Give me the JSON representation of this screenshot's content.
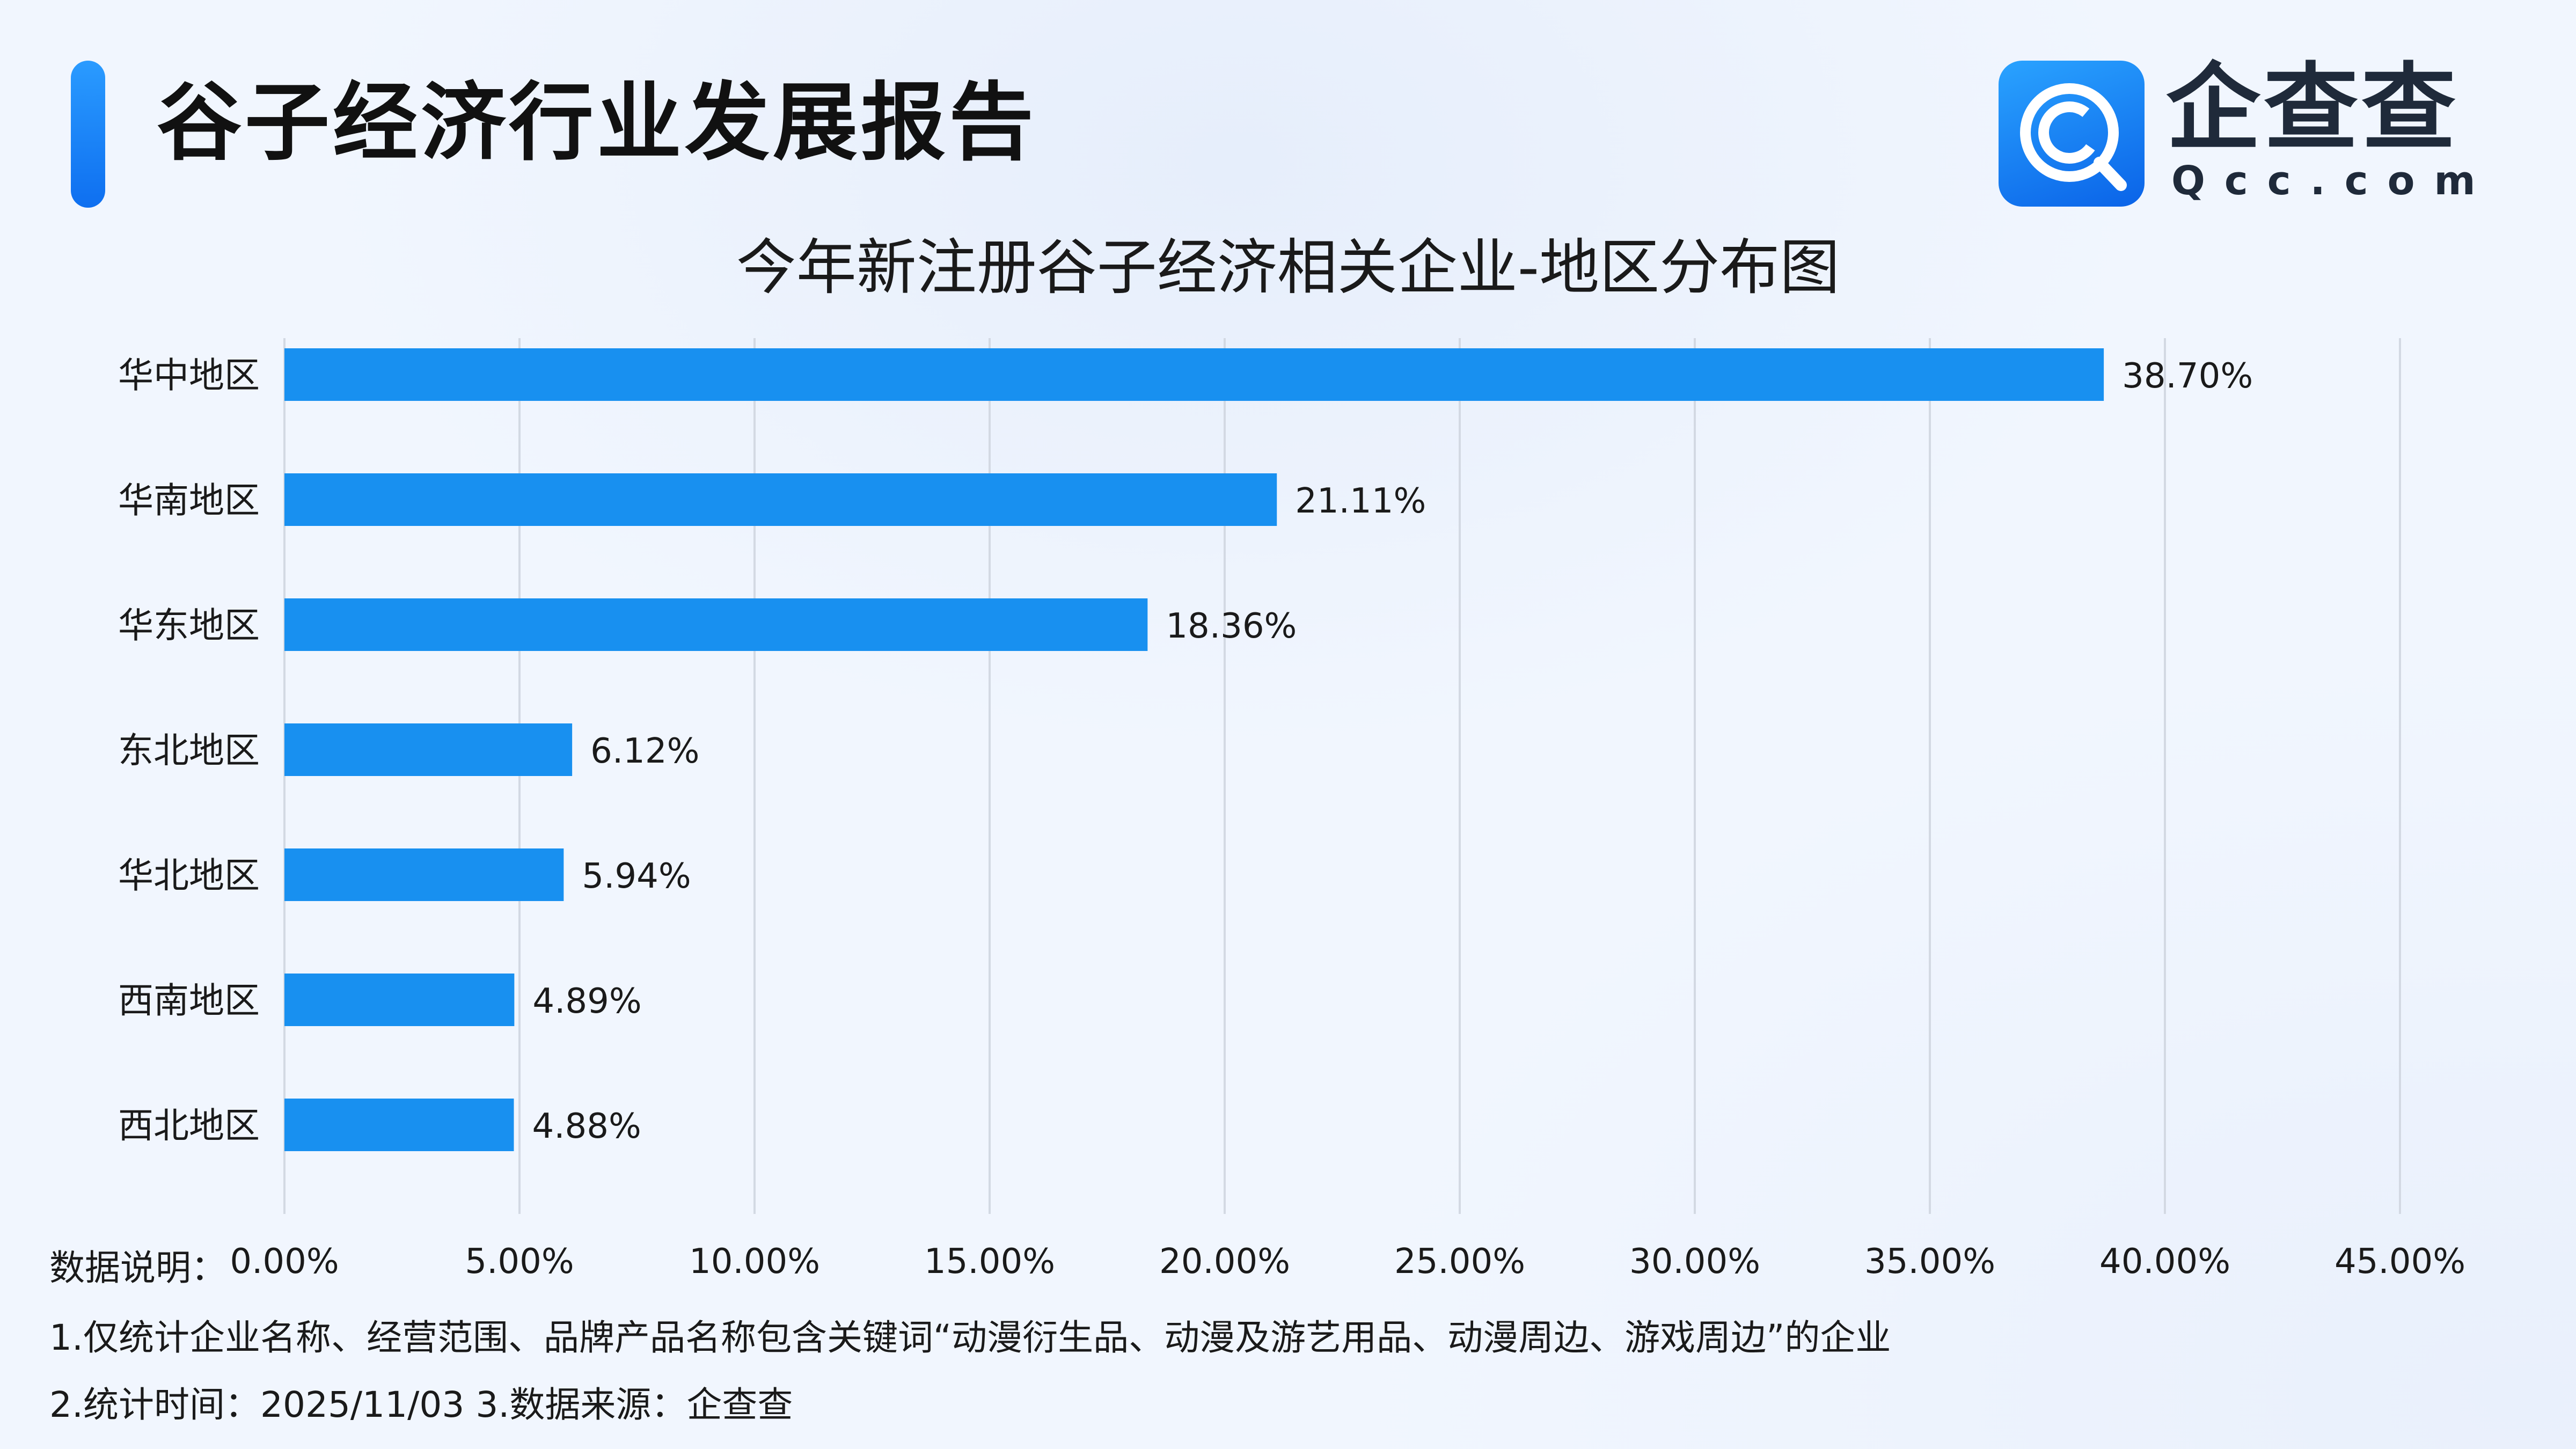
{
  "header": {
    "report_title": "谷子经济行业发展报告",
    "logo_name": "企查查",
    "logo_domain": "Qcc.com"
  },
  "colors": {
    "bar": "#1890f0",
    "accent": "#1a8cff",
    "grid": "#d3d9e3"
  },
  "chart_data": {
    "type": "bar",
    "orientation": "horizontal",
    "title": "今年新注册谷子经济相关企业-地区分布图",
    "categories": [
      "华中地区",
      "华南地区",
      "华东地区",
      "东北地区",
      "华北地区",
      "西南地区",
      "西北地区"
    ],
    "values": [
      38.7,
      21.11,
      18.36,
      6.12,
      5.94,
      4.89,
      4.88
    ],
    "value_labels": [
      "38.70%",
      "21.11%",
      "18.36%",
      "6.12%",
      "5.94%",
      "4.89%",
      "4.88%"
    ],
    "xlim": [
      0,
      45
    ],
    "xticks": [
      0,
      5,
      10,
      15,
      20,
      25,
      30,
      35,
      40,
      45
    ],
    "xtick_labels": [
      "0.00%",
      "5.00%",
      "10.00%",
      "15.00%",
      "20.00%",
      "25.00%",
      "30.00%",
      "35.00%",
      "40.00%",
      "45.00%"
    ],
    "grid": "vertical",
    "xlabel": "",
    "ylabel": ""
  },
  "notes": {
    "label": "数据说明：",
    "line1": "1.仅统计企业名称、经营范围、品牌产品名称包含关键词“动漫衍生品、动漫及游艺用品、动漫周边、游戏周边”的企业",
    "line2": "2.统计时间：2025/11/03    3.数据来源：企查查"
  }
}
